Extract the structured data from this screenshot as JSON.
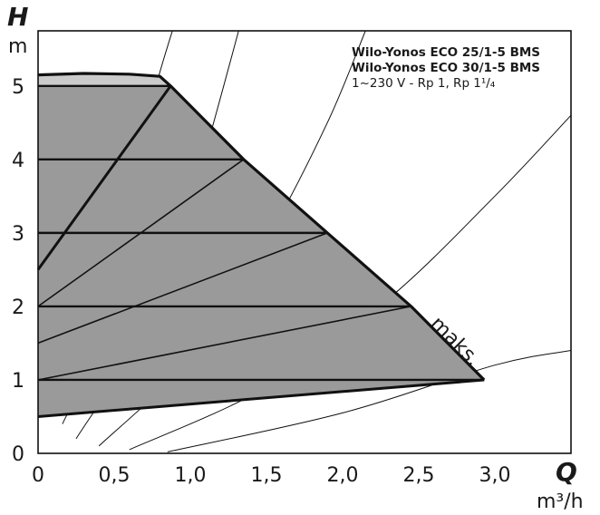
{
  "chart_data": {
    "type": "area",
    "title": {
      "line1": "Wilo-Yonos ECO 25/1-5 BMS",
      "line2": "Wilo-Yonos ECO 30/1-5 BMS",
      "line3": "1~230 V - Rp 1, Rp 1¹/₄"
    },
    "xaxis": {
      "label": "Q",
      "unit": "m³/h",
      "range": [
        0,
        3.5
      ],
      "ticks": [
        0,
        0.5,
        1.0,
        1.5,
        2.0,
        2.5,
        3.0
      ],
      "tick_labels": [
        "0",
        "0,5",
        "1,0",
        "1,5",
        "2,0",
        "2,5",
        "3,0"
      ]
    },
    "yaxis": {
      "label": "H",
      "unit": "m",
      "range": [
        0,
        5.75
      ],
      "ticks": [
        0,
        1,
        2,
        3,
        4,
        5
      ],
      "tick_labels": [
        "0",
        "1",
        "2",
        "3",
        "4",
        "5"
      ]
    },
    "grid": false,
    "annotation": "maks.",
    "constant_pressure_region": {
      "boundary": [
        [
          0,
          5.15
        ],
        [
          0.3,
          5.17
        ],
        [
          0.6,
          5.16
        ],
        [
          0.8,
          5.13
        ],
        [
          0.87,
          5.0
        ],
        [
          0.0,
          5.0
        ],
        [
          0.0,
          2.5
        ]
      ]
    },
    "variable_pressure_region": {
      "max_curve": [
        [
          0,
          5.15
        ],
        [
          0.3,
          5.17
        ],
        [
          0.6,
          5.16
        ],
        [
          0.8,
          5.13
        ],
        [
          0.87,
          5.0
        ],
        [
          1.35,
          4.0
        ],
        [
          1.9,
          3.0
        ],
        [
          2.45,
          2.0
        ],
        [
          2.93,
          1.0
        ]
      ],
      "min_curve": [
        [
          0,
          0.5
        ],
        [
          2.93,
          1.0
        ]
      ]
    },
    "dp_c_lines": [
      {
        "H": 5,
        "x": [
          0,
          0.87
        ]
      },
      {
        "H": 4,
        "x": [
          0,
          1.35
        ]
      },
      {
        "H": 3,
        "x": [
          0,
          1.9
        ]
      },
      {
        "H": 2,
        "x": [
          0,
          2.45
        ]
      },
      {
        "H": 1,
        "x": [
          0,
          2.93
        ]
      }
    ],
    "dp_v_lines": [
      {
        "H_max": 5,
        "points": [
          [
            0,
            2.5
          ],
          [
            0.87,
            5.0
          ]
        ]
      },
      {
        "H_max": 4,
        "points": [
          [
            0,
            2.0
          ],
          [
            1.35,
            4.0
          ]
        ]
      },
      {
        "H_max": 3,
        "points": [
          [
            0,
            1.5
          ],
          [
            1.9,
            3.0
          ]
        ]
      },
      {
        "H_max": 2,
        "points": [
          [
            0,
            1.0
          ],
          [
            2.45,
            2.0
          ]
        ]
      }
    ],
    "system_curves": [
      {
        "points": [
          [
            0.16,
            0.4
          ],
          [
            0.4,
            1.5
          ],
          [
            0.6,
            3.2
          ],
          [
            0.75,
            4.8
          ],
          [
            0.92,
            6.0
          ]
        ]
      },
      {
        "points": [
          [
            0.25,
            0.2
          ],
          [
            0.7,
            1.7
          ],
          [
            1.0,
            3.4
          ],
          [
            1.35,
            6.0
          ]
        ]
      },
      {
        "points": [
          [
            0.4,
            0.1
          ],
          [
            1.0,
            1.3
          ],
          [
            1.5,
            2.9
          ],
          [
            1.9,
            4.5
          ],
          [
            2.15,
            5.75
          ]
        ]
      },
      {
        "points": [
          [
            0.6,
            0.05
          ],
          [
            1.5,
            0.9
          ],
          [
            2.3,
            2.1
          ],
          [
            3.0,
            3.5
          ],
          [
            3.5,
            4.6
          ]
        ]
      },
      {
        "points": [
          [
            0.85,
            0.02
          ],
          [
            2.0,
            0.55
          ],
          [
            3.0,
            1.2
          ],
          [
            3.5,
            1.4
          ]
        ]
      }
    ],
    "colors": {
      "dark_region": "#9a9a9a",
      "light_region": "#cbcbcb",
      "line": "#111111"
    }
  }
}
